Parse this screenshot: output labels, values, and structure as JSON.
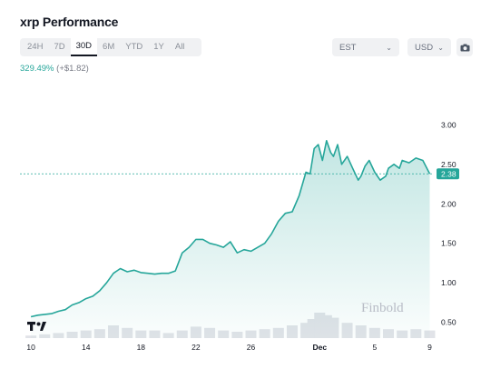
{
  "header": {
    "title": "xrp Performance"
  },
  "range_tabs": [
    {
      "label": "24H",
      "active": false
    },
    {
      "label": "7D",
      "active": false
    },
    {
      "label": "30D",
      "active": true
    },
    {
      "label": "6M",
      "active": false
    },
    {
      "label": "YTD",
      "active": false
    },
    {
      "label": "1Y",
      "active": false
    },
    {
      "label": "All",
      "active": false
    }
  ],
  "timezone": {
    "value": "EST"
  },
  "currency": {
    "value": "USD"
  },
  "change": {
    "percent": "329.49%",
    "absolute": "(+$1.82)"
  },
  "colors": {
    "line": "#26a69a",
    "badge": "#26a69a",
    "volume": "#e1e3e8"
  },
  "icons": {
    "camera": "camera-icon",
    "logo": "tradingview-logo-icon",
    "chevron": "chevron-down-icon"
  },
  "watermark": "Finbold",
  "chart_data": {
    "type": "area",
    "x_ticks": [
      {
        "label": "10",
        "day": 0,
        "bold": false
      },
      {
        "label": "14",
        "day": 4,
        "bold": false
      },
      {
        "label": "18",
        "day": 8,
        "bold": false
      },
      {
        "label": "22",
        "day": 12,
        "bold": false
      },
      {
        "label": "26",
        "day": 16,
        "bold": false
      },
      {
        "label": "Dec",
        "day": 21,
        "bold": true
      },
      {
        "label": "5",
        "day": 25,
        "bold": false
      },
      {
        "label": "9",
        "day": 29,
        "bold": false
      }
    ],
    "y_ticks": [
      0.5,
      1.0,
      1.5,
      2.0,
      2.5,
      3.0
    ],
    "y_tick_labels": [
      "0.50",
      "1.00",
      "1.50",
      "2.00",
      "2.50",
      "3.00"
    ],
    "ylim": [
      0.3,
      3.2
    ],
    "xlim": [
      -0.8,
      29.3
    ],
    "last_price": 2.38,
    "last_price_label": "2.38",
    "series": [
      {
        "x": [
          0,
          0.5,
          1,
          1.5,
          2,
          2.5,
          3,
          3.5,
          4,
          4.5,
          5,
          5.5,
          6,
          6.5,
          7,
          7.5,
          8,
          8.5,
          9,
          9.5,
          10,
          10.5,
          11,
          11.5,
          12,
          12.5,
          13,
          13.5,
          14,
          14.5,
          15,
          15.5,
          16,
          16.5,
          17,
          17.5,
          18,
          18.5,
          19,
          19.5,
          20,
          20.3,
          20.6,
          20.9,
          21.2,
          21.5,
          21.8,
          22,
          22.3,
          22.6,
          23,
          23.4,
          23.8,
          24,
          24.3,
          24.6,
          25,
          25.4,
          25.8,
          26,
          26.4,
          26.8,
          27,
          27.5,
          28,
          28.5,
          29
        ],
        "y": [
          0.57,
          0.59,
          0.6,
          0.61,
          0.64,
          0.66,
          0.72,
          0.75,
          0.8,
          0.83,
          0.9,
          1.0,
          1.12,
          1.18,
          1.14,
          1.16,
          1.13,
          1.12,
          1.11,
          1.12,
          1.12,
          1.15,
          1.38,
          1.45,
          1.55,
          1.55,
          1.5,
          1.48,
          1.45,
          1.52,
          1.38,
          1.42,
          1.4,
          1.45,
          1.5,
          1.62,
          1.78,
          1.88,
          1.9,
          2.1,
          2.4,
          2.38,
          2.7,
          2.75,
          2.55,
          2.8,
          2.65,
          2.6,
          2.75,
          2.5,
          2.6,
          2.45,
          2.3,
          2.35,
          2.48,
          2.55,
          2.4,
          2.3,
          2.35,
          2.45,
          2.5,
          2.45,
          2.55,
          2.52,
          2.58,
          2.55,
          2.38
        ]
      }
    ],
    "volume": {
      "x": [
        0,
        1,
        2,
        3,
        4,
        5,
        6,
        7,
        8,
        9,
        10,
        11,
        12,
        13,
        14,
        15,
        16,
        17,
        18,
        19,
        20,
        20.5,
        21,
        21.5,
        22,
        23,
        24,
        25,
        26,
        27,
        28,
        29
      ],
      "values": [
        0.1,
        0.15,
        0.2,
        0.25,
        0.3,
        0.35,
        0.5,
        0.4,
        0.3,
        0.3,
        0.2,
        0.3,
        0.45,
        0.4,
        0.3,
        0.25,
        0.3,
        0.35,
        0.4,
        0.5,
        0.6,
        0.75,
        1.0,
        0.9,
        0.8,
        0.6,
        0.5,
        0.4,
        0.35,
        0.3,
        0.35,
        0.3
      ]
    }
  }
}
